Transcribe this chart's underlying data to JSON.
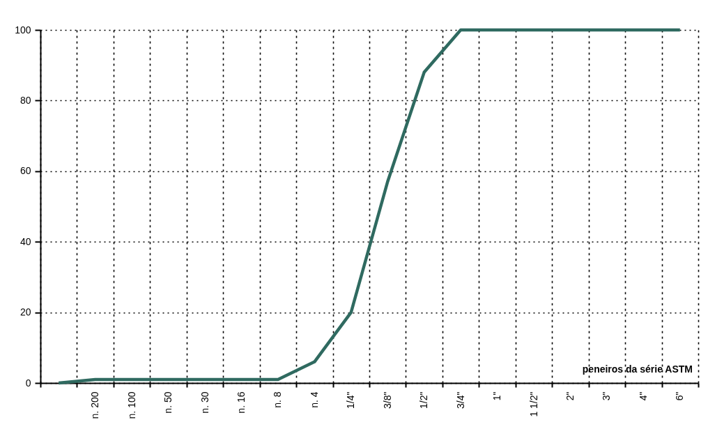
{
  "chart_data": {
    "type": "line",
    "categories": [
      null,
      "n. 200",
      "n. 100",
      "n. 50",
      "n. 30",
      "n. 16",
      "n. 8",
      "n. 4",
      "1/4\"",
      "3/8\"",
      "1/2\"",
      "3/4\"",
      "1\"",
      "1 1/2\"",
      "2\"",
      "3\"",
      "4\"",
      "6\""
    ],
    "series": [
      {
        "color": "#2f6a60",
        "values": [
          0,
          1,
          1,
          1,
          1,
          1,
          1,
          6,
          20,
          57,
          88,
          100,
          100,
          100,
          100,
          100,
          100,
          100
        ]
      }
    ],
    "ylim": [
      0,
      100
    ],
    "yticks": [
      0,
      20,
      40,
      60,
      80,
      100
    ],
    "grid": true,
    "line_style": "solid",
    "marker": "none",
    "annotations": [
      "peneiros da série ASTM"
    ]
  }
}
